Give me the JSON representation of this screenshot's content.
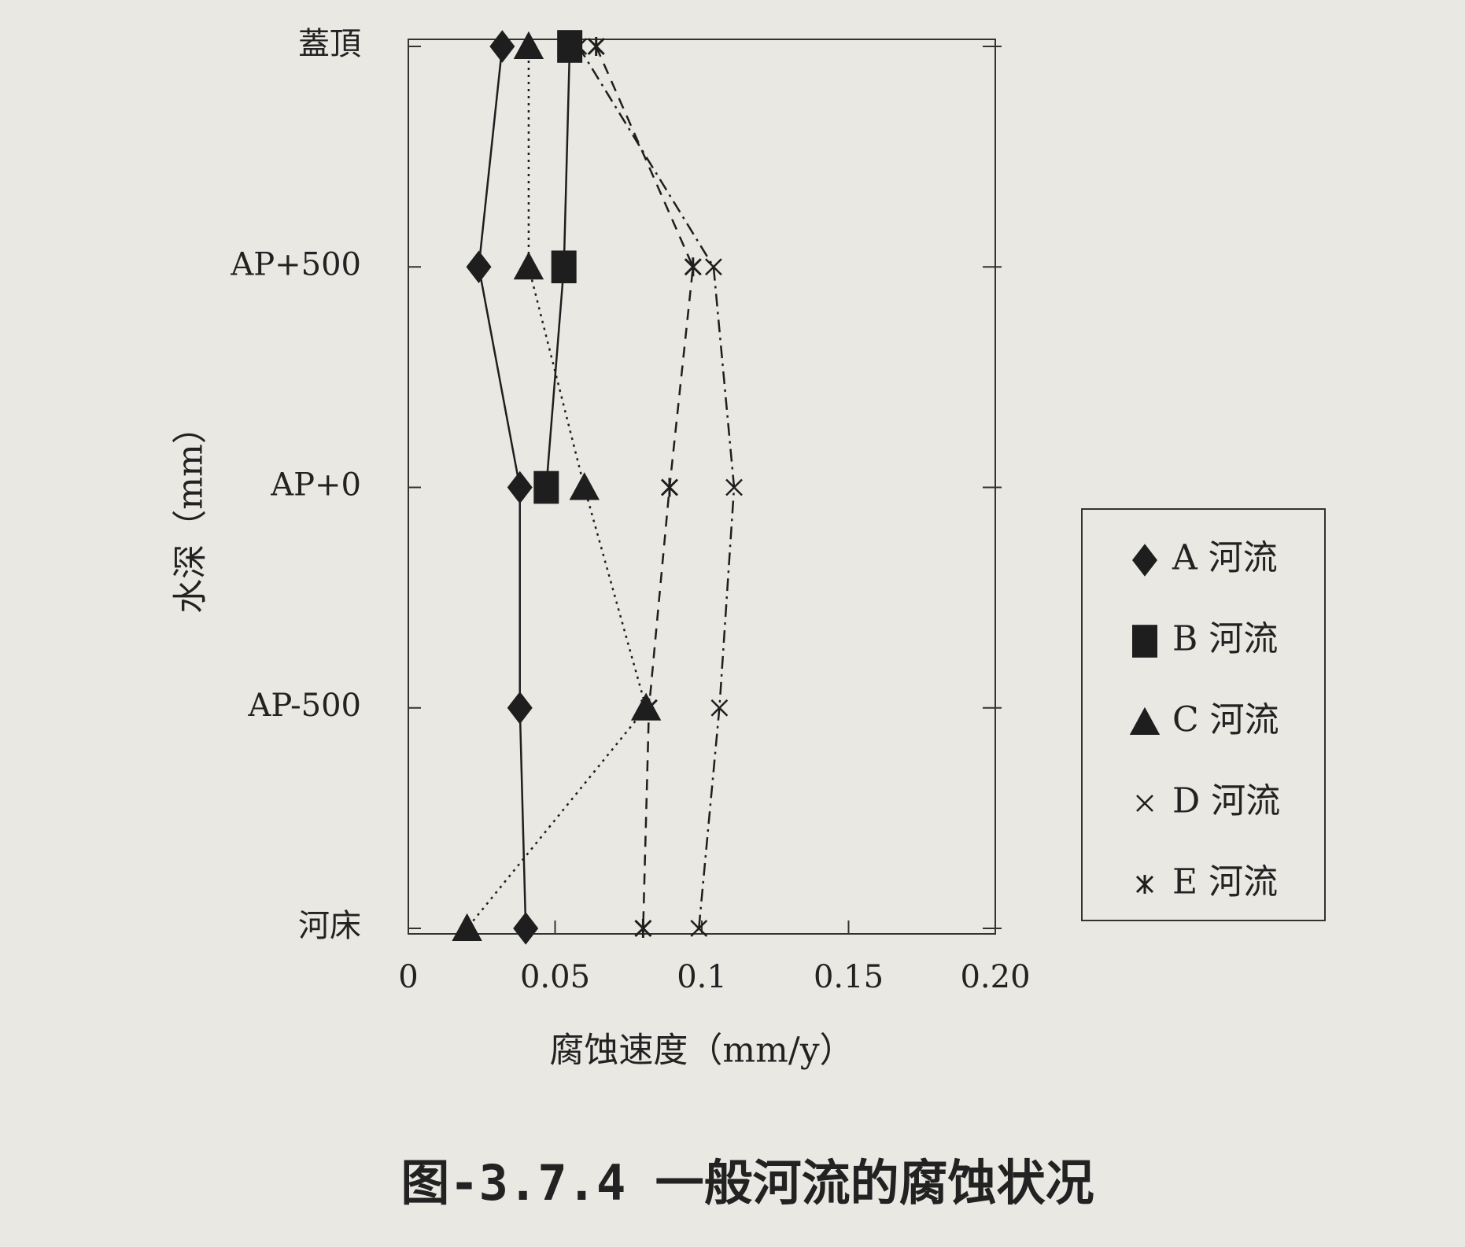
{
  "chart_data": {
    "type": "line",
    "orientation": "horizontal",
    "caption": "图-3.7.4 一般河流的腐蚀状况",
    "x_label": "腐蚀速度（mm/y）",
    "y_label": "水深（mm）",
    "categories": [
      "蓋頂",
      "AP+500",
      "AP+0",
      "AP-500",
      "河床"
    ],
    "xlim": [
      0,
      0.2
    ],
    "xticks": [
      0,
      0.05,
      0.1,
      0.15,
      {
        "value": 0.2,
        "label": "0.20"
      }
    ],
    "legend": "right",
    "series": [
      {
        "name": "A 河流",
        "color": "#1e1e1e",
        "marker": "diamond",
        "line": "solid",
        "values": [
          0.032,
          0.024,
          0.038,
          0.038,
          0.04
        ]
      },
      {
        "name": "B 河流",
        "color": "#1e1e1e",
        "marker": "square",
        "line": "solid",
        "values": [
          0.055,
          0.053,
          0.047,
          null,
          null
        ]
      },
      {
        "name": "C 河流",
        "color": "#1e1e1e",
        "marker": "triangle",
        "line": "dotted",
        "values": [
          0.041,
          0.041,
          0.06,
          0.081,
          0.02
        ]
      },
      {
        "name": "D 河流",
        "color": "#1e1e1e",
        "marker": "x",
        "line": "dashdot",
        "values": [
          0.058,
          0.104,
          0.111,
          0.106,
          0.099
        ]
      },
      {
        "name": "E 河流",
        "color": "#1e1e1e",
        "marker": "asterisk",
        "line": "dashed",
        "values": [
          0.064,
          0.097,
          0.089,
          0.082,
          0.08
        ]
      }
    ]
  }
}
